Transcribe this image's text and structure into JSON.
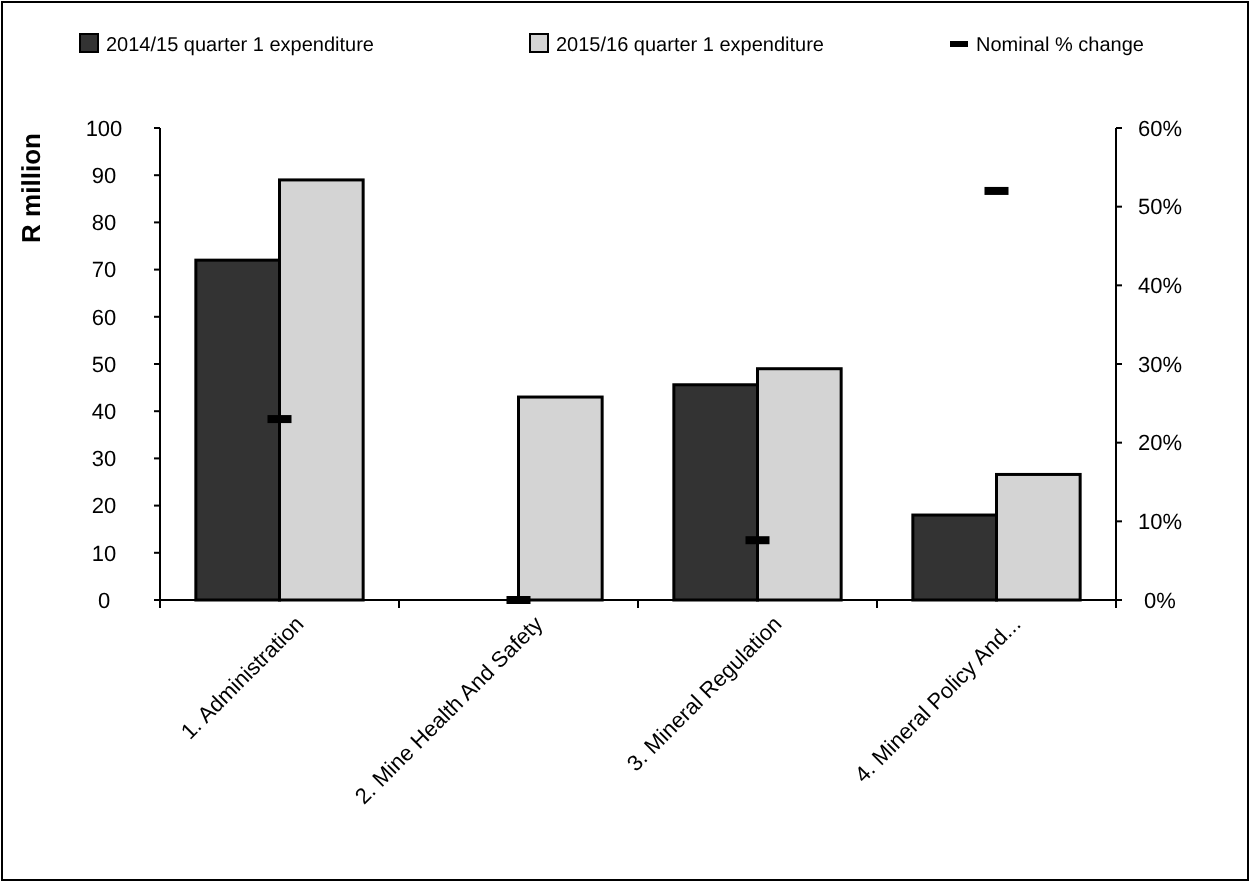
{
  "chart_data": {
    "type": "bar",
    "ylabel": "R million",
    "categories": [
      "1. Administration",
      "2. Mine Health And Safety",
      "3. Mineral Regulation",
      "4. Mineral Policy And..."
    ],
    "series": [
      {
        "name": "2014/15 quarter 1 expenditure",
        "color": "#333333",
        "values": [
          72,
          null,
          45.6,
          18
        ]
      },
      {
        "name": "2015/16 quarter 1 expenditure",
        "color": "#d4d4d4",
        "values": [
          89,
          43,
          49,
          26.6
        ]
      },
      {
        "name": "Nominal % change",
        "type": "scatter",
        "axis": "y2",
        "color": "#000000",
        "values": [
          23,
          0,
          7.6,
          52
        ]
      }
    ],
    "ylim": [
      0,
      100
    ],
    "yticks": [
      0,
      10,
      20,
      30,
      40,
      50,
      60,
      70,
      80,
      90,
      100
    ],
    "y2lim": [
      0,
      60
    ],
    "y2ticks": [
      {
        "value": 0,
        "label": "0%"
      },
      {
        "value": 10,
        "label": "10%"
      },
      {
        "value": 20,
        "label": "20%"
      },
      {
        "value": 30,
        "label": "30%"
      },
      {
        "value": 40,
        "label": "40%"
      },
      {
        "value": 50,
        "label": "50%"
      },
      {
        "value": 60,
        "label": "60%"
      }
    ],
    "legend": "top",
    "grid": false
  }
}
